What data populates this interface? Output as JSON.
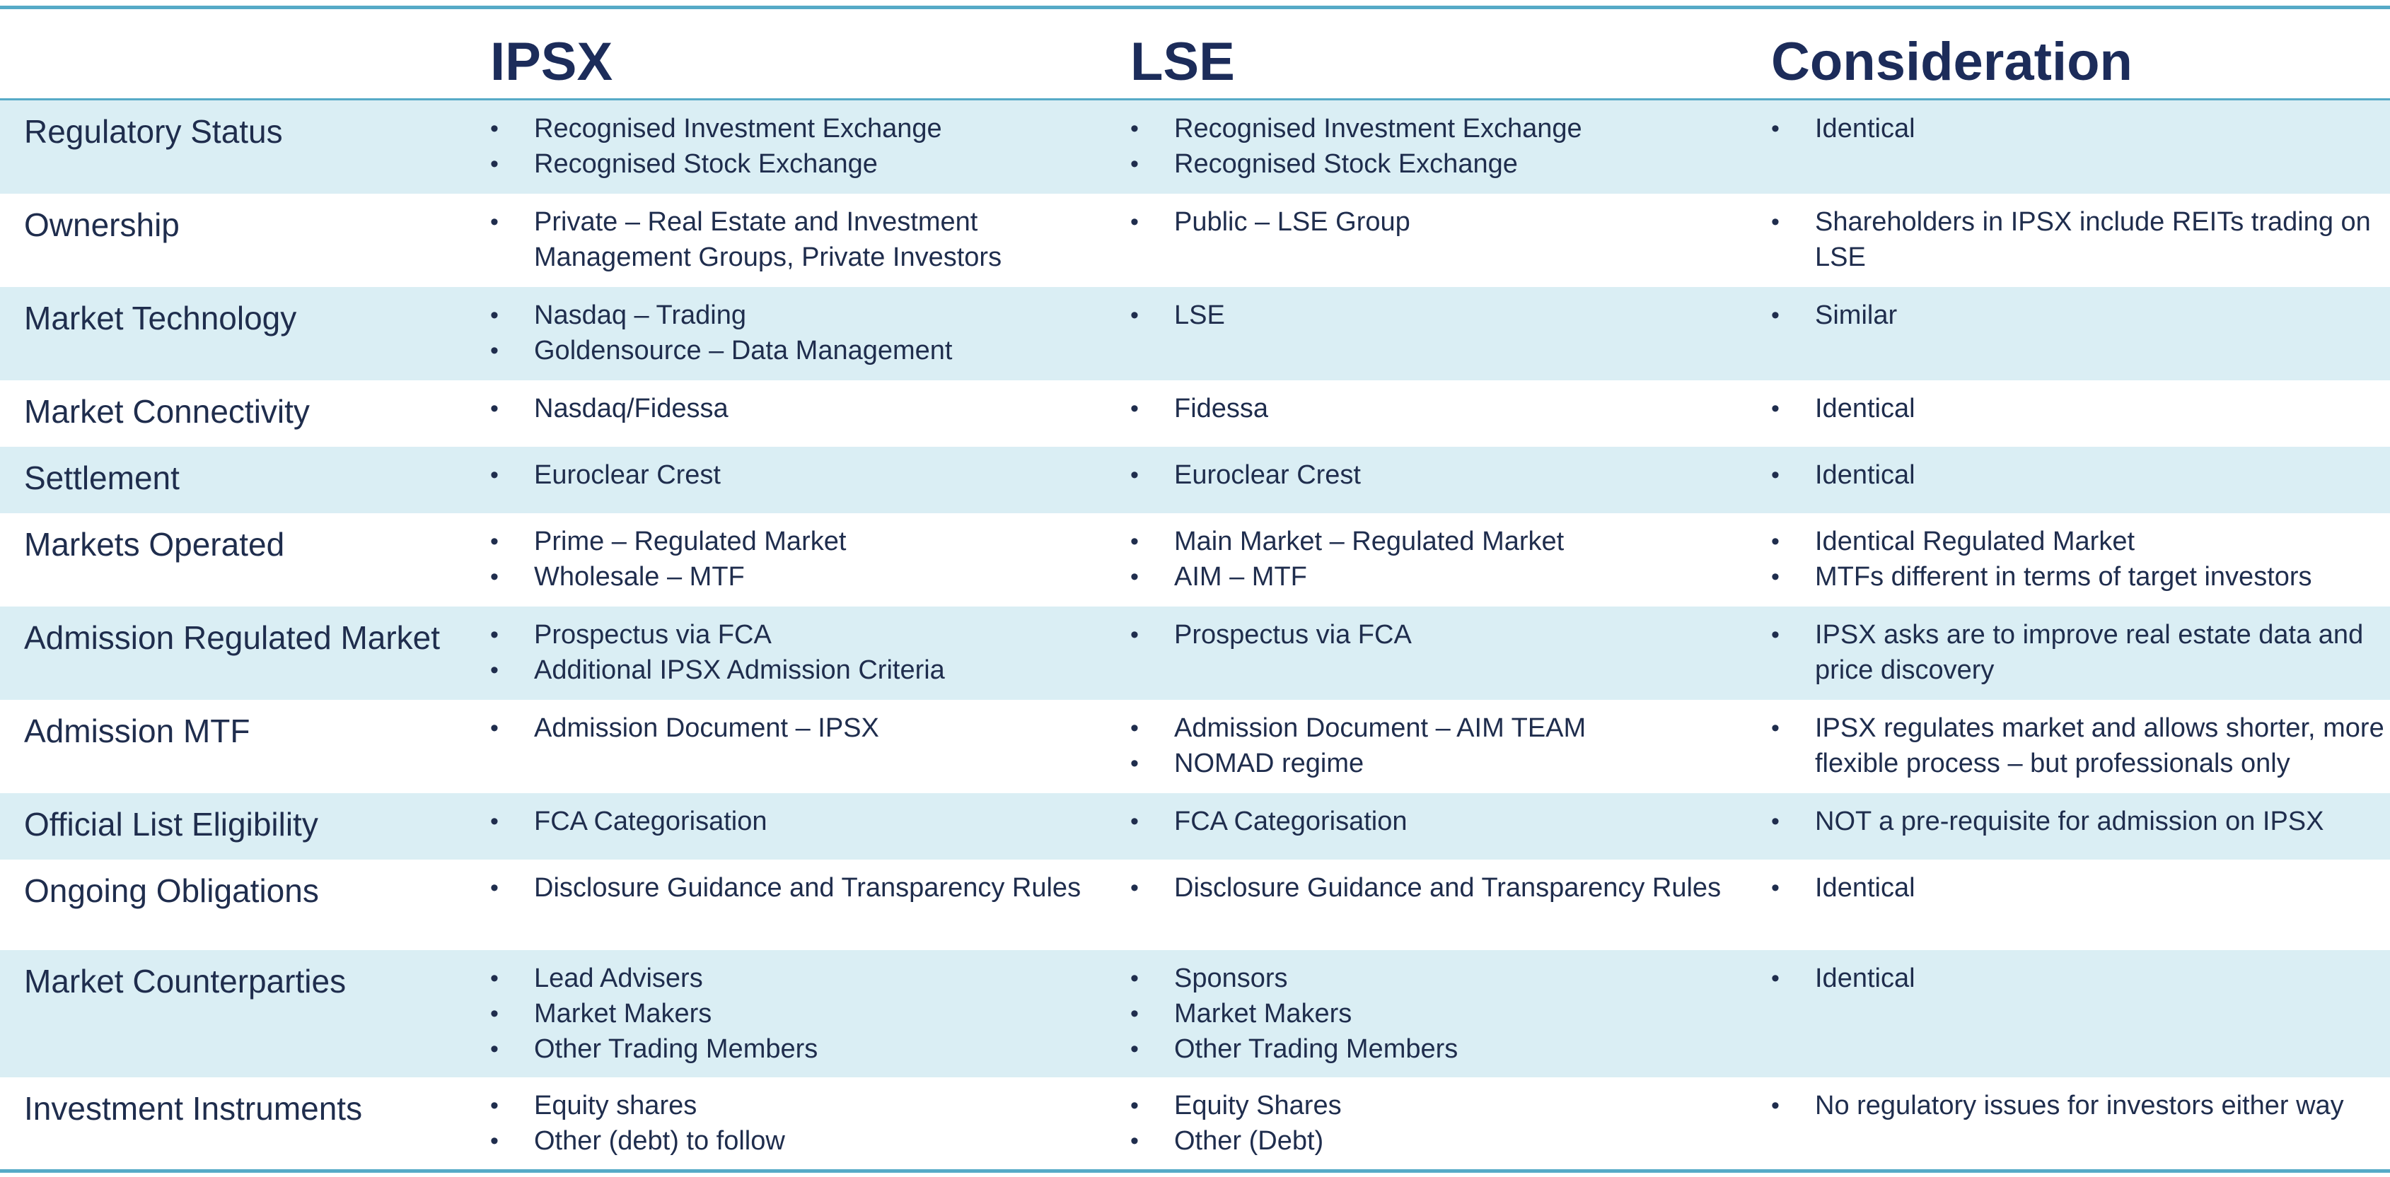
{
  "headers": {
    "col1": "IPSX",
    "col2": "LSE",
    "col3": "Consideration"
  },
  "rows": [
    {
      "label": "Regulatory Status",
      "ipsx": [
        "Recognised Investment Exchange",
        "Recognised Stock Exchange"
      ],
      "lse": [
        "Recognised Investment Exchange",
        "Recognised Stock Exchange"
      ],
      "consideration": [
        "Identical"
      ]
    },
    {
      "label": "Ownership",
      "ipsx": [
        "Private – Real Estate and Investment Management Groups, Private Investors"
      ],
      "lse": [
        "Public – LSE Group"
      ],
      "consideration": [
        "Shareholders in IPSX include REITs trading on LSE"
      ]
    },
    {
      "label": "Market Technology",
      "ipsx": [
        "Nasdaq – Trading",
        "Goldensource – Data Management"
      ],
      "lse": [
        "LSE"
      ],
      "consideration": [
        "Similar"
      ]
    },
    {
      "label": "Market Connectivity",
      "ipsx": [
        "Nasdaq/Fidessa"
      ],
      "lse": [
        "Fidessa"
      ],
      "consideration": [
        "Identical"
      ]
    },
    {
      "label": "Settlement",
      "ipsx": [
        "Euroclear Crest"
      ],
      "lse": [
        "Euroclear Crest"
      ],
      "consideration": [
        "Identical"
      ]
    },
    {
      "label": "Markets Operated",
      "ipsx": [
        "Prime – Regulated Market",
        "Wholesale – MTF"
      ],
      "lse": [
        "Main Market – Regulated Market",
        "AIM – MTF"
      ],
      "consideration": [
        "Identical Regulated Market",
        "MTFs different in terms of target investors"
      ]
    },
    {
      "label": "Admission Regulated Market",
      "ipsx": [
        "Prospectus via FCA",
        "Additional IPSX Admission Criteria"
      ],
      "lse": [
        "Prospectus via FCA"
      ],
      "consideration": [
        "IPSX asks are to improve real estate data and price discovery"
      ]
    },
    {
      "label": "Admission MTF",
      "ipsx": [
        "Admission Document – IPSX"
      ],
      "lse": [
        "Admission Document – AIM TEAM",
        "NOMAD regime"
      ],
      "consideration": [
        "IPSX regulates market and allows shorter, more flexible process – but professionals only"
      ]
    },
    {
      "label": "Official List Eligibility",
      "ipsx": [
        "FCA Categorisation"
      ],
      "lse": [
        "FCA Categorisation"
      ],
      "consideration": [
        "NOT a pre-requisite for admission on IPSX"
      ]
    },
    {
      "label": "Ongoing Obligations",
      "ipsx": [
        "Disclosure Guidance and Transparency Rules"
      ],
      "lse": [
        "Disclosure Guidance and Transparency Rules"
      ],
      "consideration": [
        "Identical"
      ]
    },
    {
      "label": "Market Counterparties",
      "ipsx": [
        "Lead Advisers",
        "Market Makers",
        "Other Trading Members"
      ],
      "lse": [
        "Sponsors",
        "Market Makers",
        "Other Trading Members"
      ],
      "consideration": [
        "Identical"
      ]
    },
    {
      "label": "Investment Instruments",
      "ipsx": [
        "Equity shares",
        "Other (debt) to follow"
      ],
      "lse": [
        "Equity Shares",
        "Other (Debt)"
      ],
      "consideration": [
        "No regulatory issues for investors either way"
      ]
    }
  ]
}
